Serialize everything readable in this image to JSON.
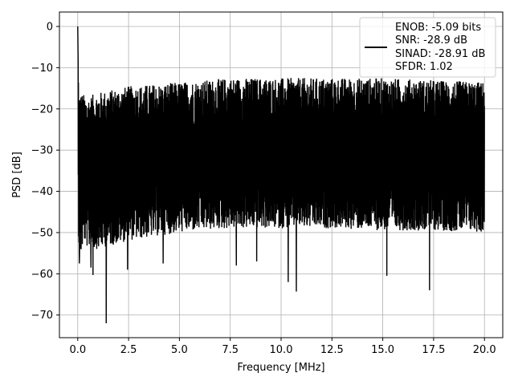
{
  "chart_data": {
    "type": "line",
    "xlabel": "Frequency [MHz]",
    "ylabel": "PSD [dB]",
    "xlim": [
      -0.9,
      20.9
    ],
    "ylim": [
      -75.5,
      3.5
    ],
    "xticks": [
      0.0,
      2.5,
      5.0,
      7.5,
      10.0,
      12.5,
      15.0,
      17.5,
      20.0
    ],
    "xtick_labels": [
      "0.0",
      "2.5",
      "5.0",
      "7.5",
      "10.0",
      "12.5",
      "15.0",
      "17.5",
      "20.0"
    ],
    "yticks": [
      0,
      -10,
      -20,
      -30,
      -40,
      -50,
      -60,
      -70
    ],
    "ytick_labels": [
      "0",
      "−10",
      "−20",
      "−30",
      "−40",
      "−50",
      "−60",
      "−70"
    ],
    "grid": true,
    "legend": {
      "placement": "top-right",
      "entries": [
        "ENOB: -5.09 bits",
        "SNR: -28.9 dB",
        "SINAD: -28.91 dB",
        "SFDR: 1.02"
      ]
    },
    "series": [
      {
        "color": "#000000",
        "envelope": {
          "x": [
            0.0,
            0.05,
            0.1,
            0.3,
            0.5,
            1.0,
            2.5,
            5.0,
            7.5,
            10.0,
            12.5,
            15.0,
            17.5,
            20.0
          ],
          "upper": [
            0.0,
            -15.0,
            -16.0,
            -16.5,
            -17.0,
            -16.0,
            -14.5,
            -13.5,
            -12.5,
            -12.5,
            -12.5,
            -12.5,
            -13.0,
            -13.5
          ],
          "lower": [
            -26.0,
            -55.0,
            -57.0,
            -52.0,
            -54.0,
            -54.0,
            -52.0,
            -50.0,
            -49.0,
            -49.0,
            -49.0,
            -49.5,
            -49.5,
            -50.0
          ]
        },
        "peak": {
          "x": 0.0,
          "y": 0.0
        },
        "dips": [
          {
            "x": 0.08,
            "y": -57.5
          },
          {
            "x": 0.65,
            "y": -58.5
          },
          {
            "x": 0.75,
            "y": -60.3
          },
          {
            "x": 1.4,
            "y": -72.0
          },
          {
            "x": 2.45,
            "y": -59.0
          },
          {
            "x": 4.2,
            "y": -57.5
          },
          {
            "x": 7.8,
            "y": -58.0
          },
          {
            "x": 8.8,
            "y": -57.0
          },
          {
            "x": 10.35,
            "y": -62.0
          },
          {
            "x": 10.75,
            "y": -64.3
          },
          {
            "x": 15.2,
            "y": -60.5
          },
          {
            "x": 17.3,
            "y": -64.0
          }
        ]
      }
    ]
  }
}
